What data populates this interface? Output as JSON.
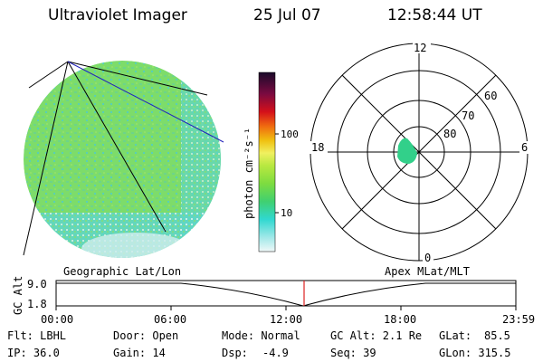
{
  "header": {
    "instrument": "Ultraviolet Imager",
    "date": "25 Jul 07",
    "time": "12:58:44 UT"
  },
  "colors": {
    "disk_fill": "#7ddc6a",
    "disk_speckle": "#5fd6c8",
    "disk_light": "#cfeeee",
    "dayglow_fill": "#32d08a",
    "geo_line": "#000000",
    "apex_line": "#2222bb",
    "time_marker": "#dd2222"
  },
  "colorbar": {
    "unit_label": "photon cm⁻²s⁻¹",
    "ticks": [
      "100",
      "10"
    ]
  },
  "polar": {
    "mlt_labels": {
      "top": "12",
      "left": "18",
      "right": "6",
      "bottom": "0"
    },
    "lat_labels": [
      "60",
      "70",
      "80"
    ]
  },
  "orbit": {
    "left_title": "Geographic Lat/Lon",
    "right_title": "Apex MLat/MLT",
    "axis_label": "GC Alt",
    "ticks": [
      "9.0",
      "1.8"
    ],
    "time_ticks": [
      "00:00",
      "06:00",
      "12:00",
      "18:00",
      "23:59"
    ]
  },
  "status": {
    "flt": "Flt: LBHL",
    "ip": "IP: 36.0",
    "door": "Door: Open",
    "gain": "Gain: 14",
    "mode": "Mode: Normal",
    "dsp": "Dsp:",
    "dsp_value": "-4.9",
    "gc_alt": "GC Alt: 2.1 Re",
    "seq": "Seq: 39",
    "glat": "GLat:",
    "glat_value": "85.5",
    "glon": "GLon: 315.5"
  }
}
